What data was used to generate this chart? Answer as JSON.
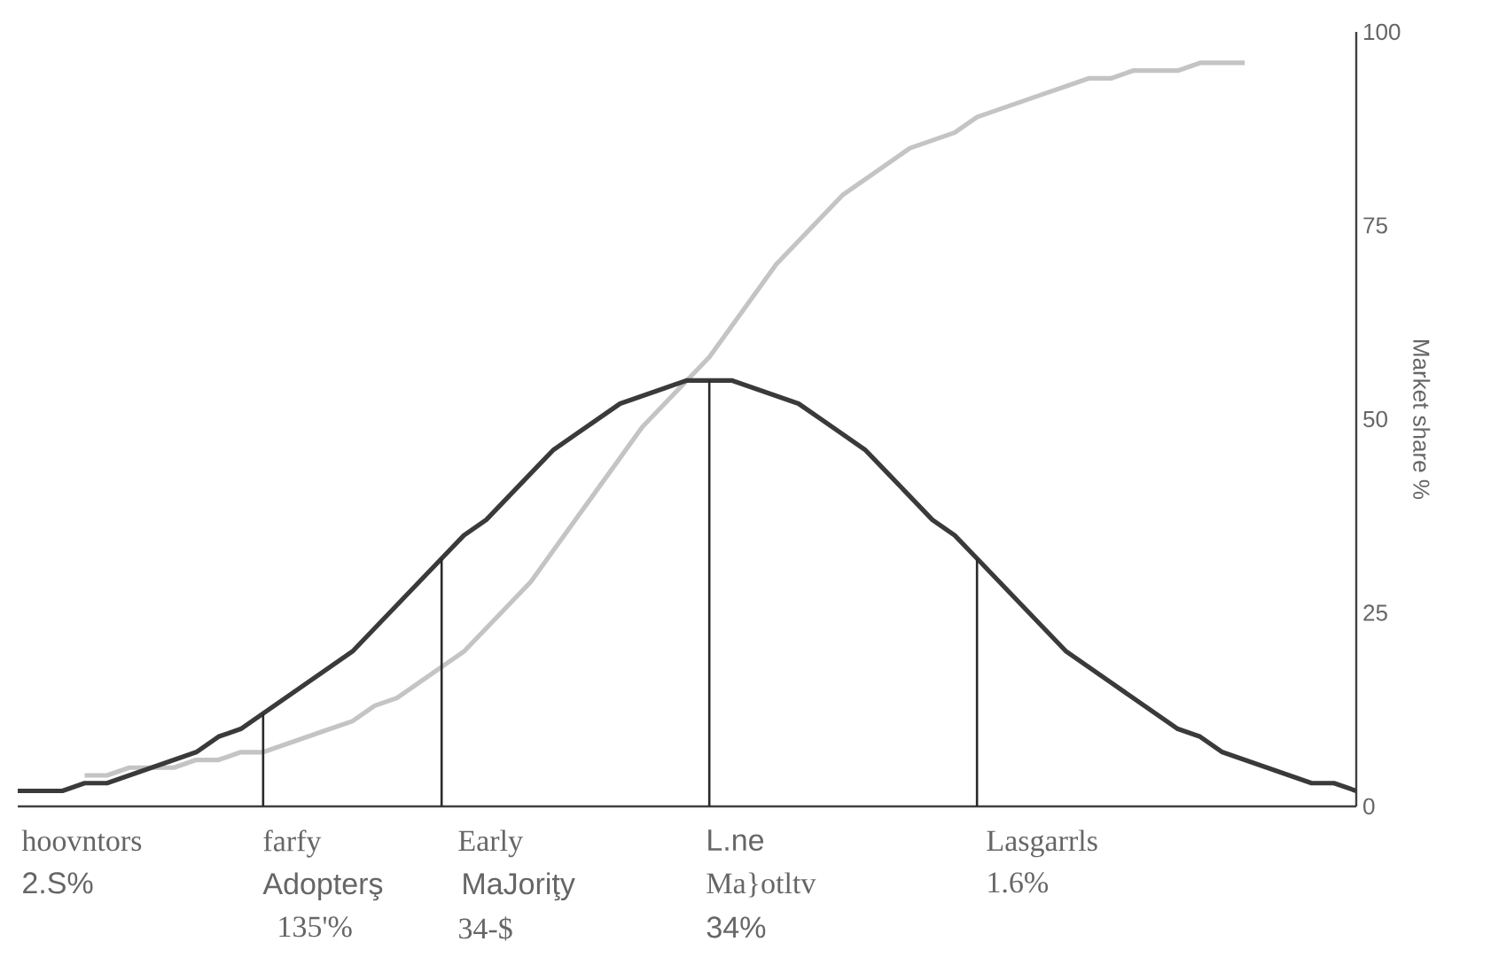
{
  "chart_data": {
    "type": "line",
    "ylabel": "Market share %",
    "categories": [
      null,
      null,
      null,
      null,
      null,
      null,
      null,
      null,
      null,
      null,
      null,
      null,
      null,
      null,
      null,
      null,
      null,
      null,
      null,
      null,
      null,
      null,
      null,
      null,
      null,
      null,
      null,
      null,
      null,
      null,
      null,
      null,
      null,
      null,
      null,
      null,
      null,
      null,
      null,
      null,
      null,
      null,
      null,
      null,
      null,
      null,
      null,
      null,
      null,
      null,
      null,
      null,
      null,
      null,
      null,
      null,
      null,
      null,
      null,
      null,
      null
    ],
    "series": [
      {
        "type": "line",
        "color": "#c4c4c4",
        "values": [
          null,
          null,
          null,
          4,
          4,
          5,
          5,
          5,
          6,
          6,
          7,
          7,
          8,
          9,
          10,
          11,
          13,
          14,
          16,
          18,
          20,
          23,
          26,
          29,
          33,
          37,
          41,
          45,
          49,
          52,
          55,
          58,
          62,
          66,
          70,
          73,
          76,
          79,
          81,
          83,
          85,
          86,
          87,
          89,
          90,
          91,
          92,
          93,
          94,
          94,
          95,
          95,
          95,
          96,
          96,
          96,
          null,
          null,
          null,
          null,
          null
        ]
      },
      {
        "type": "line",
        "color": "#3a3a3a",
        "values": [
          2,
          2,
          2,
          3,
          3,
          4,
          5,
          6,
          7,
          9,
          10,
          12,
          14,
          16,
          18,
          20,
          23,
          26,
          29,
          32,
          35,
          37,
          40,
          43,
          46,
          48,
          50,
          52,
          53,
          54,
          55,
          55,
          55,
          54,
          53,
          52,
          50,
          48,
          46,
          43,
          40,
          37,
          35,
          32,
          29,
          26,
          23,
          20,
          18,
          16,
          14,
          12,
          10,
          9,
          7,
          6,
          5,
          4,
          3,
          3,
          2
        ]
      },
      {
        "type": "bar",
        "color": "#2a2a2a",
        "values": [
          null,
          null,
          null,
          null,
          null,
          null,
          null,
          null,
          null,
          null,
          null,
          12,
          null,
          null,
          null,
          null,
          null,
          null,
          null,
          32,
          null,
          null,
          null,
          null,
          null,
          null,
          null,
          null,
          null,
          null,
          null,
          55,
          null,
          null,
          null,
          null,
          null,
          null,
          null,
          null,
          null,
          null,
          null,
          32,
          null,
          null,
          null,
          null,
          null,
          null,
          null,
          null,
          null,
          null,
          null,
          null,
          null,
          null,
          null,
          null,
          null
        ]
      }
    ],
    "ylim": [
      0,
      100
    ],
    "yticks": [
      0,
      25,
      50,
      75,
      100
    ],
    "tick_labels": "y",
    "grid": false,
    "legend": false,
    "marker": "none",
    "line_style": "solid",
    "annotations": [
      "hoovntors",
      "2.S%",
      "farfy",
      "Adopterş",
      "135'%",
      "Early",
      "MaJoriţy",
      "34-$",
      "L.ne",
      "Ma}otltv",
      "34%",
      "Lasgarrls",
      "1.6%"
    ]
  }
}
